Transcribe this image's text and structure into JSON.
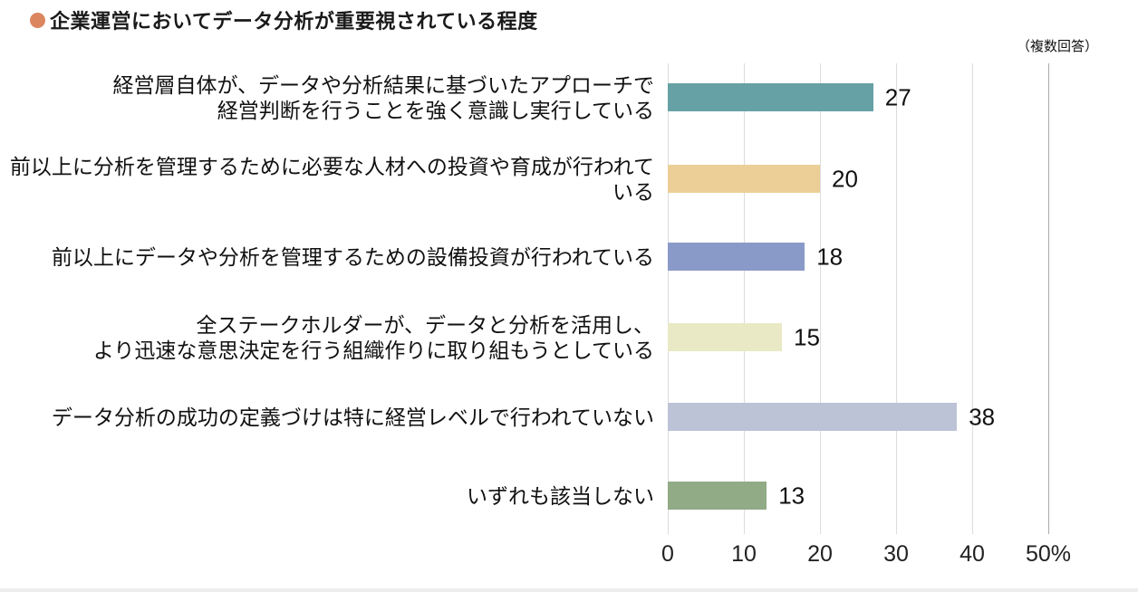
{
  "title": {
    "bullet_color": "#DC8660",
    "text": "企業運営においてデータ分析が重要視されている程度"
  },
  "note": "（複数回答）",
  "chart_data": {
    "type": "bar",
    "orientation": "horizontal",
    "title": "企業運営においてデータ分析が重要視されている程度",
    "subtitle": "（複数回答）",
    "categories": [
      [
        "経営層自体が、データや分析結果に基づいたアプローチで",
        "経営判断を行うことを強く意識し実行している"
      ],
      [
        "前以上に分析を管理するために必要な人材への投資や育成が行われている"
      ],
      [
        "前以上にデータや分析を管理するための設備投資が行われている"
      ],
      [
        "全ステークホルダーが、データと分析を活用し、",
        "より迅速な意思決定を行う組織作りに取り組もうとしている"
      ],
      [
        "データ分析の成功の定義づけは特に経営レベルで行われていない"
      ],
      [
        "いずれも該当しない"
      ]
    ],
    "values": [
      27,
      20,
      18,
      15,
      38,
      13
    ],
    "bar_colors": [
      "#66A1A5",
      "#ECCF97",
      "#8A9AC8",
      "#E9E9C6",
      "#BDC3D6",
      "#91AB86"
    ],
    "xlabel": "",
    "ylabel": "",
    "xlim": [
      0,
      50
    ],
    "x_ticks": [
      {
        "value": 0,
        "label": "0"
      },
      {
        "value": 10,
        "label": "10"
      },
      {
        "value": 20,
        "label": "20"
      },
      {
        "value": 30,
        "label": "30"
      },
      {
        "value": 40,
        "label": "40"
      },
      {
        "value": 50,
        "label": "50%"
      }
    ],
    "grid": true,
    "grid_color": "#DCDCDC",
    "axis_end_line_color": "#ABABAB",
    "legend_position": "none"
  }
}
